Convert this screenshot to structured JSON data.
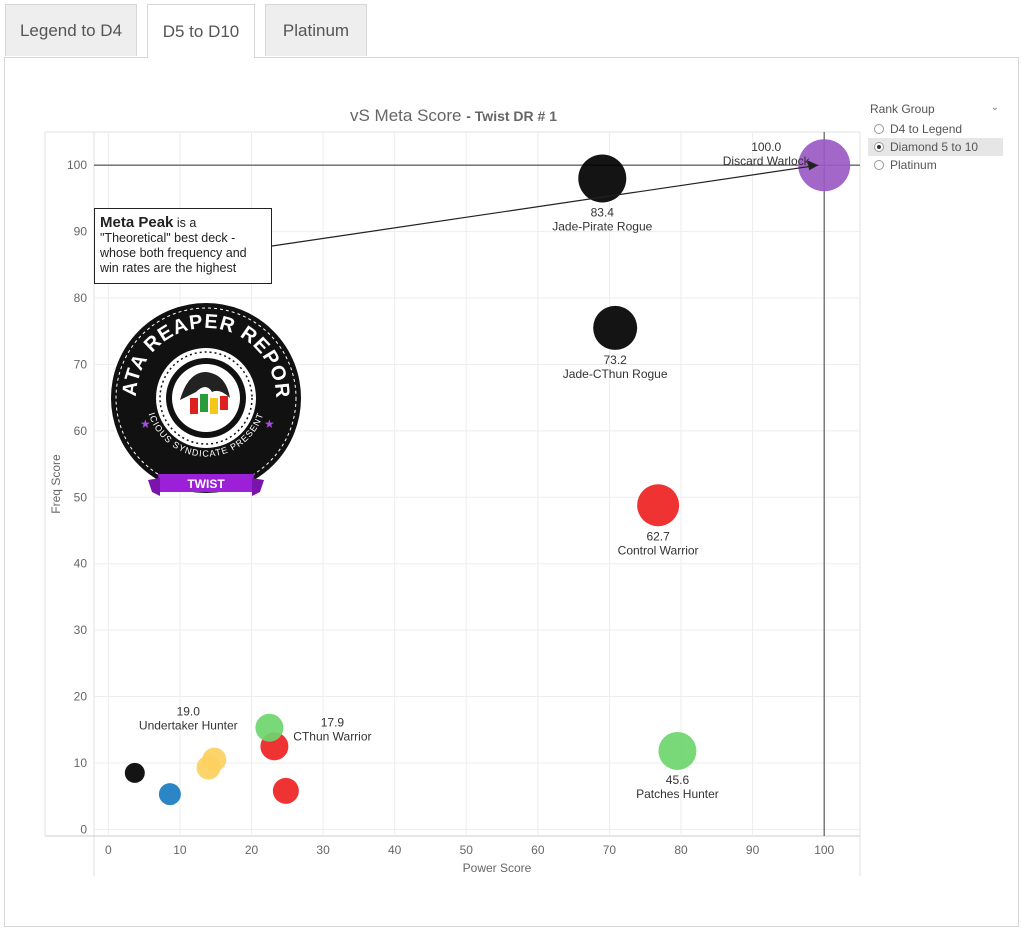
{
  "tabs": [
    {
      "label": "Legend to D4",
      "active": false
    },
    {
      "label": "D5 to D10",
      "active": true
    },
    {
      "label": "Platinum",
      "active": false
    }
  ],
  "chart_title": {
    "main": "vS Meta Score",
    "sub": "- Twist DR # 1"
  },
  "annotation": {
    "bold": "Meta Peak",
    "text": " is a \"Theoretical\" best deck - whose both frequency and win rates are the highest"
  },
  "legend": {
    "title": "Rank Group",
    "options": [
      "D4 to Legend",
      "Diamond 5 to 10",
      "Platinum"
    ],
    "selected": 1
  },
  "logo": {
    "text_top": "DATA REAPER REPORT",
    "text_bottom": "VICIOUS SYNDICATE PRESENTS",
    "ribbon": "TWIST"
  },
  "chart_data": {
    "type": "scatter",
    "title": "vS Meta Score",
    "subtitle": "- Twist DR # 1",
    "xlabel": "Power Score",
    "ylabel": "Freq Score",
    "xlim": [
      -2,
      105
    ],
    "ylim": [
      -1,
      105
    ],
    "xticks": [
      0,
      10,
      20,
      30,
      40,
      50,
      60,
      70,
      80,
      90,
      100
    ],
    "yticks": [
      0,
      10,
      20,
      30,
      40,
      50,
      60,
      70,
      80,
      90,
      100
    ],
    "grid": true,
    "reference_lines": {
      "x": 100,
      "y": 100
    },
    "points": [
      {
        "name": "Discard Warlock",
        "score": "100.0",
        "x": 100,
        "y": 100,
        "color": "#9b59c4",
        "size": 26
      },
      {
        "name": "Jade-Pirate Rogue",
        "score": "83.4",
        "x": 69,
        "y": 98,
        "color": "#000000",
        "size": 24
      },
      {
        "name": "Jade-CThun Rogue",
        "score": "73.2",
        "x": 70.8,
        "y": 75.5,
        "color": "#000000",
        "size": 22
      },
      {
        "name": "Control Warrior",
        "score": "62.7",
        "x": 76.8,
        "y": 48.8,
        "color": "#ee2222",
        "size": 21
      },
      {
        "name": "Patches Hunter",
        "score": "45.6",
        "x": 79.5,
        "y": 11.8,
        "color": "#6ed66e",
        "size": 19
      },
      {
        "name": "Undertaker Hunter",
        "score": "19.0",
        "x": 14.8,
        "y": 10.5,
        "color": "#fdd060",
        "size": 12
      },
      {
        "name": "CThun Warrior",
        "score": "17.9",
        "x": 23.2,
        "y": 12.5,
        "color": "#ee2222",
        "size": 14
      },
      {
        "name": "",
        "score": "",
        "x": 22.5,
        "y": 15.3,
        "color": "#6ed66e",
        "size": 14
      },
      {
        "name": "",
        "score": "",
        "x": 14,
        "y": 9.3,
        "color": "#fdd060",
        "size": 12
      },
      {
        "name": "",
        "score": "",
        "x": 24.8,
        "y": 5.8,
        "color": "#ee2222",
        "size": 13
      },
      {
        "name": "",
        "score": "",
        "x": 3.7,
        "y": 8.5,
        "color": "#000000",
        "size": 10
      },
      {
        "name": "",
        "score": "",
        "x": 8.6,
        "y": 5.3,
        "color": "#1a7bbf",
        "size": 11
      }
    ]
  }
}
